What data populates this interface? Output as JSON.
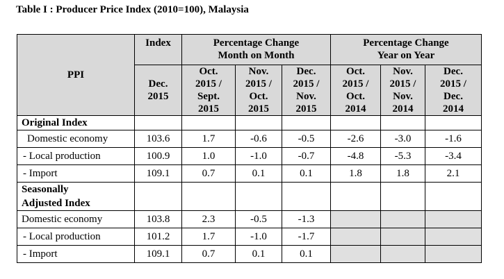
{
  "title": "Table I : Producer Price Index (2010=100), Malaysia",
  "header": {
    "ppi": "PPI",
    "index": "Index",
    "mom": "Percentage Change\nMonth on Month",
    "yoy": "Percentage Change\nYear on Year",
    "sub": [
      "Dec.\n2015",
      "Oct.\n2015 /\nSept.\n2015",
      "Nov.\n2015 /\nOct.\n2015",
      "Dec.\n2015 /\nNov.\n2015",
      "Oct.\n2015 /\nOct.\n2014",
      "Nov.\n2015 /\nNov.\n2014",
      "Dec.\n2015 /\nDec.\n2014"
    ]
  },
  "sections": {
    "original": "Original Index",
    "seasonal": "Seasonally\nAdjusted Index"
  },
  "original_rows": [
    {
      "label": "Domestic economy",
      "values": [
        "103.6",
        "1.7",
        "-0.6",
        "-0.5",
        "-2.6",
        "-3.0",
        "-1.6"
      ]
    },
    {
      "label": "- Local production",
      "values": [
        "100.9",
        "1.0",
        "-1.0",
        "-0.7",
        "-4.8",
        "-5.3",
        "-3.4"
      ]
    },
    {
      "label": "- Import",
      "values": [
        "109.1",
        "0.7",
        "0.1",
        "0.1",
        "1.8",
        "1.8",
        "2.1"
      ]
    }
  ],
  "seasonal_rows": [
    {
      "label": "Domestic economy",
      "values": [
        "103.8",
        "2.3",
        "-0.5",
        "-1.3",
        "",
        "",
        ""
      ]
    },
    {
      "label": "- Local production",
      "values": [
        "101.2",
        "1.7",
        "-1.0",
        "-1.7",
        "",
        "",
        ""
      ]
    },
    {
      "label": "- Import",
      "values": [
        "109.1",
        "0.7",
        "0.1",
        "0.1",
        "",
        "",
        ""
      ]
    }
  ]
}
